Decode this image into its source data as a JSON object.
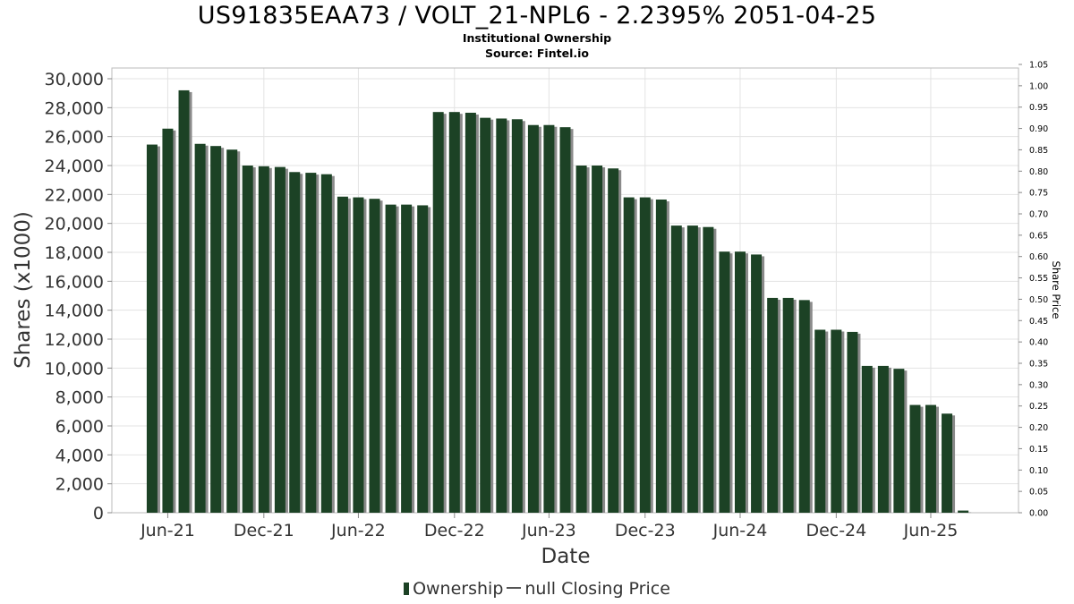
{
  "chart_data": {
    "type": "bar",
    "title": "US91835EAA73 / VOLT_21-NPL6 - 2.2395% 2051-04-25",
    "subtitle": "Institutional Ownership",
    "source": "Source: Fintel.io",
    "xlabel": "Date",
    "ylabel": "Shares (x1000)",
    "y2label": "Share Price",
    "ylim": [
      0,
      30000
    ],
    "y2lim": [
      0,
      1.05
    ],
    "yticks": [
      "0",
      "2,000",
      "4,000",
      "6,000",
      "8,000",
      "10,000",
      "12,000",
      "14,000",
      "16,000",
      "18,000",
      "20,000",
      "22,000",
      "24,000",
      "26,000",
      "28,000",
      "30,000"
    ],
    "y2ticks": [
      "0.00",
      "0.05",
      "0.10",
      "0.15",
      "0.20",
      "0.25",
      "0.30",
      "0.35",
      "0.40",
      "0.45",
      "0.50",
      "0.55",
      "0.60",
      "0.65",
      "0.70",
      "0.75",
      "0.80",
      "0.85",
      "0.90",
      "0.95",
      "1.00",
      "1.05"
    ],
    "xticks": [
      {
        "label": "Jun-21",
        "date": "2021-06-30"
      },
      {
        "label": "Dec-21",
        "date": "2021-12-31"
      },
      {
        "label": "Jun-22",
        "date": "2022-06-30"
      },
      {
        "label": "Dec-22",
        "date": "2022-12-31"
      },
      {
        "label": "Jun-23",
        "date": "2023-06-30"
      },
      {
        "label": "Dec-23",
        "date": "2023-12-31"
      },
      {
        "label": "Jun-24",
        "date": "2024-06-30"
      },
      {
        "label": "Dec-24",
        "date": "2024-12-31"
      },
      {
        "label": "Jun-25",
        "date": "2025-06-30"
      }
    ],
    "xlim": [
      "2021-03-15",
      "2025-12-15"
    ],
    "grid": true,
    "legend_position": "bottom",
    "series": [
      {
        "name": "Ownership",
        "color": "#1c4225",
        "x": [
          "2021-05-31",
          "2021-06-30",
          "2021-07-31",
          "2021-08-31",
          "2021-09-30",
          "2021-10-31",
          "2021-11-30",
          "2021-12-31",
          "2022-01-31",
          "2022-02-28",
          "2022-03-31",
          "2022-04-30",
          "2022-05-31",
          "2022-06-30",
          "2022-07-31",
          "2022-08-31",
          "2022-09-30",
          "2022-10-31",
          "2022-11-30",
          "2022-12-31",
          "2023-01-31",
          "2023-02-28",
          "2023-03-31",
          "2023-04-30",
          "2023-05-31",
          "2023-06-30",
          "2023-07-31",
          "2023-08-31",
          "2023-09-30",
          "2023-10-31",
          "2023-11-30",
          "2023-12-31",
          "2024-01-31",
          "2024-02-29",
          "2024-03-31",
          "2024-04-30",
          "2024-05-31",
          "2024-06-30",
          "2024-07-31",
          "2024-08-31",
          "2024-09-30",
          "2024-10-31",
          "2024-11-30",
          "2024-12-31",
          "2025-01-31",
          "2025-02-28",
          "2025-03-31",
          "2025-04-30",
          "2025-05-31",
          "2025-06-30",
          "2025-07-31",
          "2025-08-31",
          "2025-09-30"
        ],
        "values": [
          25450,
          26550,
          29200,
          25500,
          25350,
          25100,
          24000,
          23950,
          23900,
          23550,
          23500,
          23400,
          21850,
          21800,
          21700,
          21300,
          21300,
          21250,
          27700,
          27700,
          27650,
          27300,
          27250,
          27200,
          26800,
          26800,
          26650,
          24000,
          24000,
          23800,
          21800,
          21800,
          21650,
          19850,
          19850,
          19750,
          18050,
          18050,
          17850,
          14850,
          14850,
          14700,
          12650,
          12650,
          12500,
          10150,
          10150,
          9950,
          7450,
          7450,
          6850,
          150,
          0
        ]
      },
      {
        "name": "null Closing Price",
        "color": "#555555",
        "values": []
      }
    ]
  }
}
